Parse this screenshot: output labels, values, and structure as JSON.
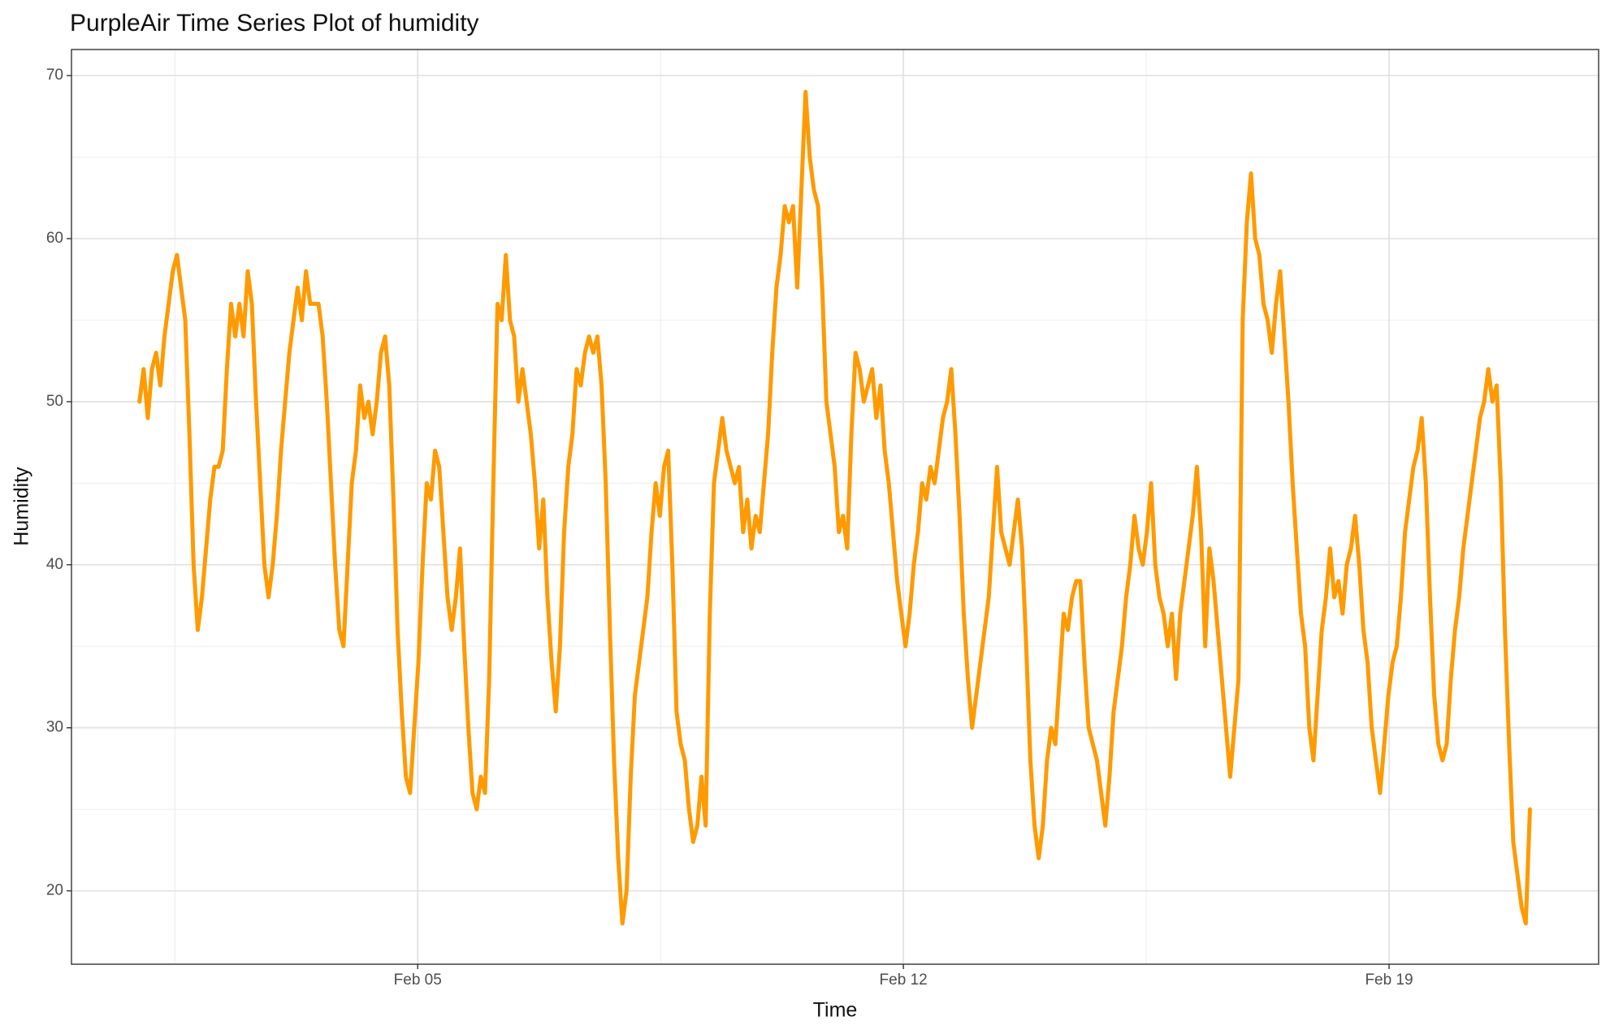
{
  "chart_data": {
    "type": "line",
    "title": "PurpleAir Time Series Plot of humidity",
    "x_label": "Time",
    "y_label": "Humidity",
    "color": "#ff9a00",
    "grid": true,
    "minor_grid": true,
    "xlim": [
      0.01,
      22.02
    ],
    "xticks": [
      {
        "value": 5,
        "label": "Feb 05"
      },
      {
        "value": 12,
        "label": "Feb 12"
      },
      {
        "value": 19,
        "label": "Feb 19"
      }
    ],
    "ylim": [
      15.5,
      71.6
    ],
    "yticks": [
      20,
      30,
      40,
      50,
      60,
      70
    ],
    "x": [
      0.99,
      1.05,
      1.11,
      1.17,
      1.23,
      1.29,
      1.35,
      1.41,
      1.47,
      1.53,
      1.59,
      1.65,
      1.71,
      1.77,
      1.83,
      1.89,
      1.95,
      2.01,
      2.07,
      2.13,
      2.19,
      2.25,
      2.31,
      2.37,
      2.43,
      2.49,
      2.55,
      2.61,
      2.67,
      2.73,
      2.79,
      2.85,
      2.91,
      2.97,
      3.03,
      3.09,
      3.15,
      3.21,
      3.27,
      3.33,
      3.39,
      3.45,
      3.51,
      3.57,
      3.63,
      3.69,
      3.75,
      3.81,
      3.87,
      3.93,
      3.99,
      4.05,
      4.11,
      4.17,
      4.23,
      4.29,
      4.35,
      4.41,
      4.47,
      4.53,
      4.59,
      4.65,
      4.71,
      4.77,
      4.83,
      4.89,
      4.95,
      5.01,
      5.07,
      5.13,
      5.19,
      5.25,
      5.31,
      5.37,
      5.43,
      5.49,
      5.55,
      5.61,
      5.67,
      5.73,
      5.79,
      5.85,
      5.91,
      5.97,
      6.03,
      6.09,
      6.15,
      6.21,
      6.27,
      6.33,
      6.39,
      6.45,
      6.51,
      6.57,
      6.63,
      6.69,
      6.75,
      6.81,
      6.87,
      6.93,
      6.99,
      7.05,
      7.11,
      7.17,
      7.23,
      7.29,
      7.35,
      7.41,
      7.47,
      7.53,
      7.59,
      7.65,
      7.71,
      7.77,
      7.83,
      7.89,
      7.95,
      8.01,
      8.07,
      8.13,
      8.19,
      8.25,
      8.31,
      8.37,
      8.43,
      8.49,
      8.55,
      8.61,
      8.67,
      8.73,
      8.79,
      8.85,
      8.91,
      8.97,
      9.03,
      9.09,
      9.15,
      9.21,
      9.27,
      9.33,
      9.39,
      9.45,
      9.51,
      9.57,
      9.63,
      9.69,
      9.75,
      9.81,
      9.87,
      9.93,
      9.99,
      10.05,
      10.11,
      10.17,
      10.23,
      10.29,
      10.35,
      10.41,
      10.47,
      10.53,
      10.59,
      10.65,
      10.71,
      10.77,
      10.83,
      10.89,
      10.95,
      11.01,
      11.07,
      11.13,
      11.19,
      11.25,
      11.31,
      11.37,
      11.43,
      11.49,
      11.55,
      11.61,
      11.67,
      11.73,
      11.79,
      11.85,
      11.91,
      11.97,
      12.03,
      12.09,
      12.15,
      12.21,
      12.27,
      12.33,
      12.39,
      12.45,
      12.51,
      12.57,
      12.63,
      12.69,
      12.75,
      12.81,
      12.87,
      12.93,
      12.99,
      13.05,
      13.11,
      13.17,
      13.23,
      13.29,
      13.35,
      13.41,
      13.47,
      13.53,
      13.59,
      13.65,
      13.71,
      13.77,
      13.83,
      13.89,
      13.95,
      14.01,
      14.07,
      14.13,
      14.19,
      14.25,
      14.31,
      14.37,
      14.43,
      14.49,
      14.55,
      14.61,
      14.67,
      14.73,
      14.79,
      14.85,
      14.91,
      14.97,
      15.03,
      15.09,
      15.15,
      15.21,
      15.27,
      15.33,
      15.39,
      15.45,
      15.51,
      15.57,
      15.63,
      15.69,
      15.75,
      15.81,
      15.87,
      15.93,
      15.99,
      16.05,
      16.11,
      16.17,
      16.23,
      16.29,
      16.35,
      16.41,
      16.47,
      16.53,
      16.59,
      16.65,
      16.71,
      16.77,
      16.83,
      16.89,
      16.95,
      17.01,
      17.07,
      17.13,
      17.19,
      17.25,
      17.31,
      17.37,
      17.43,
      17.49,
      17.55,
      17.61,
      17.67,
      17.73,
      17.79,
      17.85,
      17.91,
      17.97,
      18.03,
      18.09,
      18.15,
      18.21,
      18.27,
      18.33,
      18.39,
      18.45,
      18.51,
      18.57,
      18.63,
      18.69,
      18.75,
      18.81,
      18.87,
      18.93,
      18.99,
      19.05,
      19.11,
      19.17,
      19.23,
      19.29,
      19.35,
      19.41,
      19.47,
      19.53,
      19.59,
      19.65,
      19.71,
      19.77,
      19.83,
      19.89,
      19.95,
      20.01,
      20.07,
      20.13,
      20.19,
      20.25,
      20.31,
      20.37,
      20.43,
      20.49,
      20.55,
      20.61,
      20.67,
      20.73,
      20.79,
      20.85,
      20.91,
      20.97,
      21.03
    ],
    "values": [
      50,
      52,
      49,
      52,
      53,
      51,
      54,
      56,
      58,
      59,
      57,
      55,
      48,
      40,
      36,
      38,
      41,
      44,
      46,
      46,
      47,
      52,
      56,
      54,
      56,
      54,
      58,
      56,
      50,
      45,
      40,
      38,
      40,
      43,
      47,
      50,
      53,
      55,
      57,
      55,
      58,
      56,
      56,
      56,
      54,
      50,
      45,
      40,
      36,
      35,
      40,
      45,
      47,
      51,
      49,
      50,
      48,
      50,
      53,
      54,
      51,
      44,
      36,
      31,
      27,
      26,
      30,
      34,
      40,
      45,
      44,
      47,
      46,
      42,
      38,
      36,
      38,
      41,
      35,
      30,
      26,
      25,
      27,
      26,
      33,
      45,
      56,
      55,
      59,
      55,
      54,
      50,
      52,
      50,
      48,
      45,
      41,
      44,
      38,
      34,
      31,
      35,
      42,
      46,
      48,
      52,
      51,
      53,
      54,
      53,
      54,
      51,
      45,
      36,
      28,
      22,
      18,
      20,
      27,
      32,
      34,
      36,
      38,
      42,
      45,
      43,
      46,
      47,
      40,
      31,
      29,
      28,
      25,
      23,
      24,
      27,
      24,
      37,
      45,
      47,
      49,
      47,
      46,
      45,
      46,
      42,
      44,
      41,
      43,
      42,
      45,
      48,
      53,
      57,
      59,
      62,
      61,
      62,
      57,
      63,
      69,
      65,
      63,
      62,
      57,
      50,
      48,
      46,
      42,
      43,
      41,
      48,
      53,
      52,
      50,
      51,
      52,
      49,
      51,
      47,
      45,
      42,
      39,
      37,
      35,
      37,
      40,
      42,
      45,
      44,
      46,
      45,
      47,
      49,
      50,
      52,
      48,
      43,
      37,
      33,
      30,
      32,
      34,
      36,
      38,
      42,
      46,
      42,
      41,
      40,
      42,
      44,
      41,
      35,
      28,
      24,
      22,
      24,
      28,
      30,
      29,
      33,
      37,
      36,
      38,
      39,
      39,
      34,
      30,
      29,
      28,
      26,
      24,
      27,
      31,
      33,
      35,
      38,
      40,
      43,
      41,
      40,
      42,
      45,
      40,
      38,
      37,
      35,
      37,
      33,
      37,
      39,
      41,
      43,
      46,
      42,
      35,
      41,
      39,
      36,
      33,
      30,
      27,
      30,
      33,
      55,
      61,
      64,
      60,
      59,
      56,
      55,
      53,
      56,
      58,
      54,
      50,
      45,
      41,
      37,
      35,
      30,
      28,
      32,
      36,
      38,
      41,
      38,
      39,
      37,
      40,
      41,
      43,
      40,
      36,
      34,
      30,
      28,
      26,
      29,
      32,
      34,
      35,
      38,
      42,
      44,
      46,
      47,
      49,
      45,
      38,
      32,
      29,
      28,
      29,
      33,
      36,
      38,
      41,
      43,
      45,
      47,
      49,
      50,
      52,
      50,
      51,
      45,
      36,
      29,
      23,
      21,
      19,
      18,
      25
    ]
  }
}
